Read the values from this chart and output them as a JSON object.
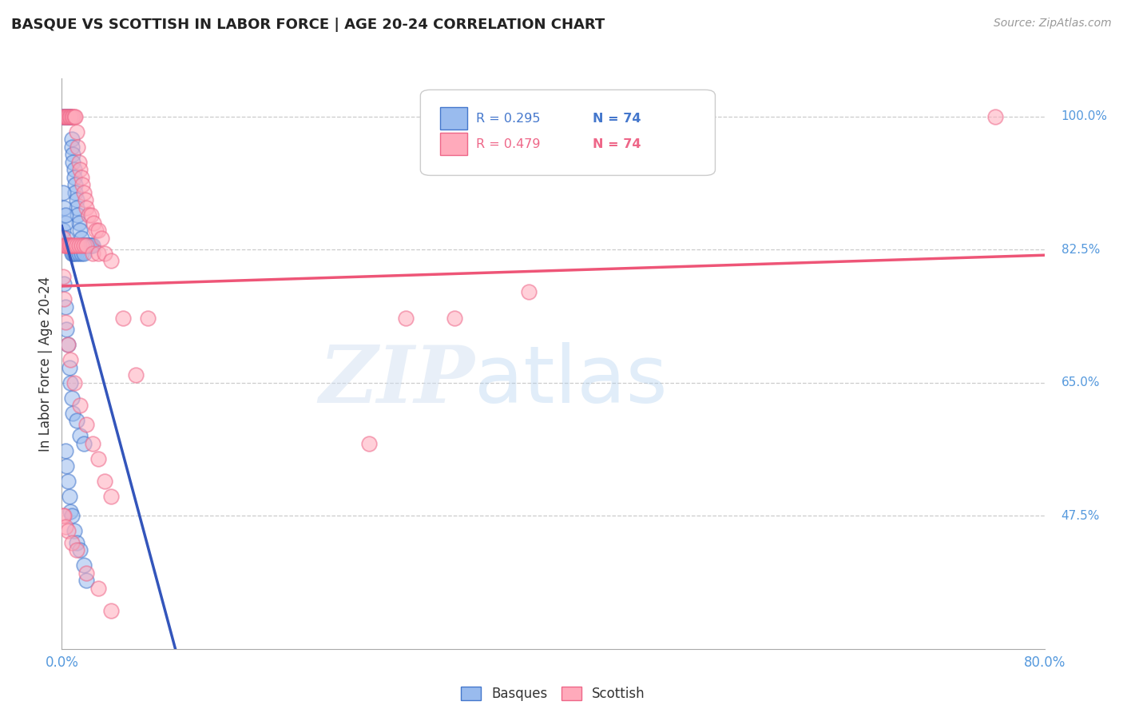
{
  "title": "BASQUE VS SCOTTISH IN LABOR FORCE | AGE 20-24 CORRELATION CHART",
  "source": "Source: ZipAtlas.com",
  "ylabel": "In Labor Force | Age 20-24",
  "xlim": [
    0.0,
    0.8
  ],
  "ylim": [
    0.3,
    1.05
  ],
  "yticks_right": [
    0.475,
    0.65,
    0.825,
    1.0
  ],
  "ytick_right_labels": [
    "47.5%",
    "65.0%",
    "82.5%",
    "100.0%"
  ],
  "legend_blue_r": "R = 0.295",
  "legend_blue_n": "N = 74",
  "legend_pink_r": "R = 0.479",
  "legend_pink_n": "N = 74",
  "blue_fill": "#99BBEE",
  "blue_edge": "#4477CC",
  "pink_fill": "#FFAABB",
  "pink_edge": "#EE6688",
  "blue_line": "#3355BB",
  "pink_line": "#EE5577",
  "label_color": "#5599DD",
  "basque_x": [
    0.001,
    0.002,
    0.002,
    0.003,
    0.003,
    0.004,
    0.004,
    0.005,
    0.005,
    0.006,
    0.006,
    0.007,
    0.007,
    0.008,
    0.008,
    0.009,
    0.009,
    0.01,
    0.01,
    0.011,
    0.011,
    0.012,
    0.012,
    0.013,
    0.014,
    0.015,
    0.016,
    0.017,
    0.018,
    0.019,
    0.02,
    0.021,
    0.022,
    0.023,
    0.024,
    0.025,
    0.001,
    0.001,
    0.002,
    0.003,
    0.003,
    0.004,
    0.005,
    0.006,
    0.007,
    0.008,
    0.009,
    0.01,
    0.012,
    0.014,
    0.016,
    0.018,
    0.002,
    0.003,
    0.004,
    0.005,
    0.006,
    0.007,
    0.008,
    0.009,
    0.012,
    0.015,
    0.018,
    0.003,
    0.004,
    0.005,
    0.006,
    0.007,
    0.008,
    0.01,
    0.012,
    0.015,
    0.018,
    0.02
  ],
  "basque_y": [
    1.0,
    1.0,
    1.0,
    1.0,
    1.0,
    1.0,
    1.0,
    1.0,
    1.0,
    1.0,
    1.0,
    1.0,
    1.0,
    0.97,
    0.96,
    0.95,
    0.94,
    0.93,
    0.92,
    0.91,
    0.9,
    0.89,
    0.88,
    0.87,
    0.86,
    0.85,
    0.84,
    0.83,
    0.83,
    0.83,
    0.83,
    0.83,
    0.83,
    0.83,
    0.83,
    0.83,
    0.9,
    0.85,
    0.88,
    0.86,
    0.87,
    0.84,
    0.83,
    0.83,
    0.83,
    0.82,
    0.82,
    0.82,
    0.82,
    0.82,
    0.82,
    0.82,
    0.78,
    0.75,
    0.72,
    0.7,
    0.67,
    0.65,
    0.63,
    0.61,
    0.6,
    0.58,
    0.57,
    0.56,
    0.54,
    0.52,
    0.5,
    0.48,
    0.475,
    0.455,
    0.44,
    0.43,
    0.41,
    0.39
  ],
  "scottish_x": [
    0.001,
    0.002,
    0.003,
    0.004,
    0.005,
    0.006,
    0.007,
    0.008,
    0.009,
    0.01,
    0.011,
    0.012,
    0.013,
    0.014,
    0.015,
    0.016,
    0.017,
    0.018,
    0.019,
    0.02,
    0.022,
    0.024,
    0.026,
    0.028,
    0.03,
    0.032,
    0.001,
    0.002,
    0.003,
    0.004,
    0.005,
    0.006,
    0.007,
    0.008,
    0.009,
    0.01,
    0.012,
    0.014,
    0.016,
    0.018,
    0.02,
    0.025,
    0.03,
    0.035,
    0.04,
    0.001,
    0.002,
    0.003,
    0.005,
    0.007,
    0.01,
    0.015,
    0.02,
    0.025,
    0.03,
    0.035,
    0.04,
    0.001,
    0.002,
    0.003,
    0.005,
    0.008,
    0.012,
    0.02,
    0.03,
    0.04,
    0.05,
    0.06,
    0.07,
    0.76,
    0.25,
    0.38,
    0.28,
    0.32
  ],
  "scottish_y": [
    1.0,
    1.0,
    1.0,
    1.0,
    1.0,
    1.0,
    1.0,
    1.0,
    1.0,
    1.0,
    1.0,
    0.98,
    0.96,
    0.94,
    0.93,
    0.92,
    0.91,
    0.9,
    0.89,
    0.88,
    0.87,
    0.87,
    0.86,
    0.85,
    0.85,
    0.84,
    0.84,
    0.83,
    0.83,
    0.83,
    0.83,
    0.83,
    0.83,
    0.83,
    0.83,
    0.83,
    0.83,
    0.83,
    0.83,
    0.83,
    0.83,
    0.82,
    0.82,
    0.82,
    0.81,
    0.79,
    0.76,
    0.73,
    0.7,
    0.68,
    0.65,
    0.62,
    0.595,
    0.57,
    0.55,
    0.52,
    0.5,
    0.475,
    0.475,
    0.46,
    0.455,
    0.44,
    0.43,
    0.4,
    0.38,
    0.35,
    0.735,
    0.66,
    0.735,
    1.0,
    0.57,
    0.77,
    0.735,
    0.735
  ]
}
